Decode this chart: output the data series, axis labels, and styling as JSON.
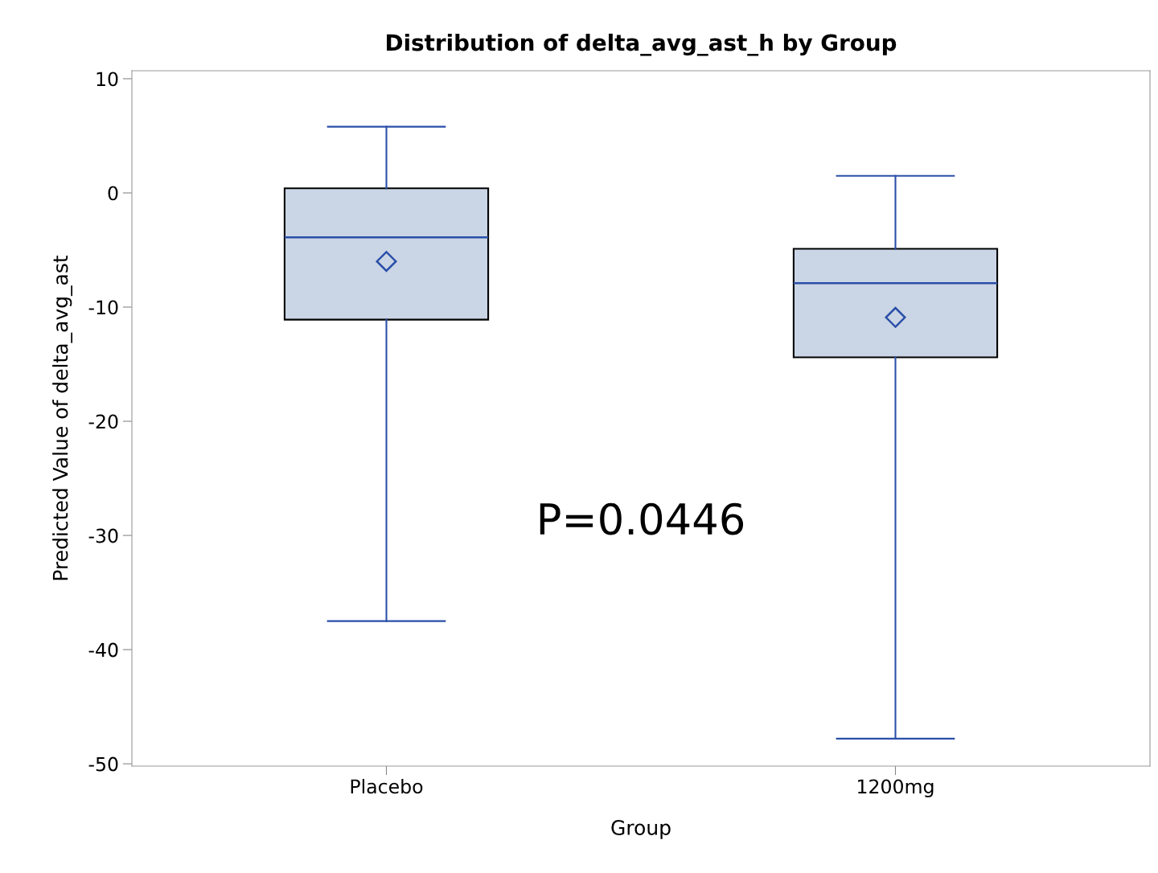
{
  "chart_data": {
    "type": "box",
    "title": "Distribution of delta_avg_ast_h by Group",
    "xlabel": "Group",
    "ylabel": "Predicted Value of delta_avg_ast",
    "categories": [
      "Placebo",
      "1200mg"
    ],
    "boxes": [
      {
        "low": -37.5,
        "q1": -11.1,
        "median": -3.9,
        "q3": 0.4,
        "high": 5.8,
        "mean": -6.0
      },
      {
        "low": -47.8,
        "q1": -14.4,
        "median": -7.9,
        "q3": -4.9,
        "high": 1.5,
        "mean": -10.9
      }
    ],
    "color": "#cad5e5",
    "ylim": [
      -50.2,
      10.7
    ],
    "yticks": [
      -50,
      -40,
      -30,
      -20,
      -10,
      0,
      10
    ],
    "grid": false,
    "marker": "diamond",
    "annotations": [
      "P=0.0446"
    ]
  }
}
